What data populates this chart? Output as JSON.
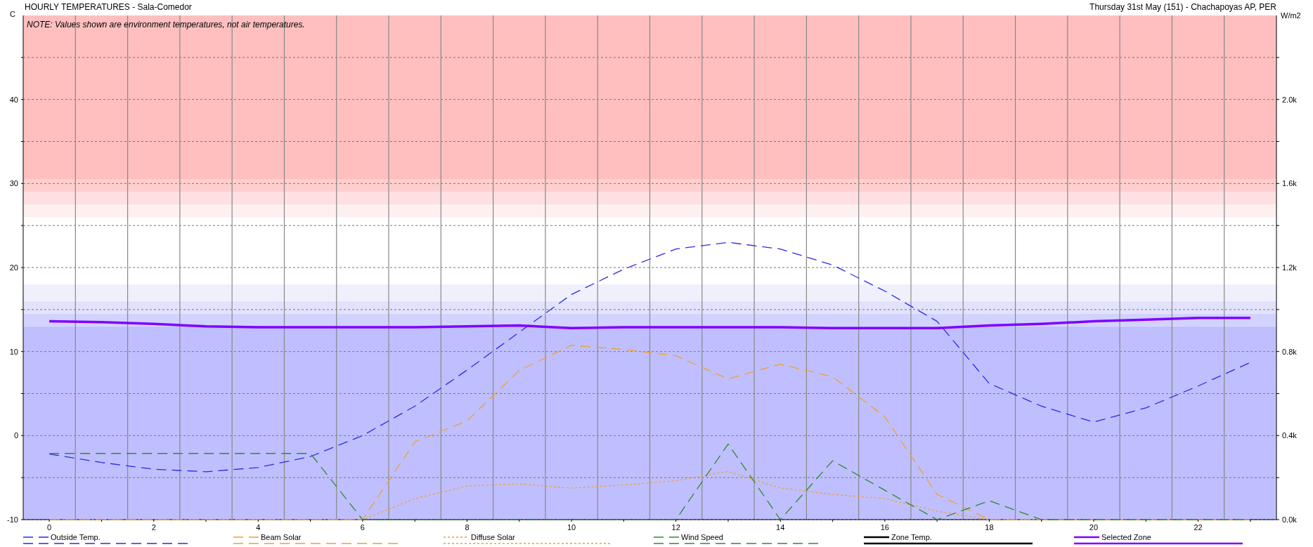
{
  "chart_data": {
    "type": "line",
    "title": "HOURLY TEMPERATURES - Sala-Comedor",
    "subtitle": "Thursday 31st May (151) - Chachapoyas AP, PER",
    "ylabel": "C",
    "y2label": "W/m2",
    "annotations": [
      "NOTE: Values shown are environment temperatures, not air temperatures."
    ],
    "x": [
      0,
      1,
      2,
      3,
      4,
      5,
      6,
      7,
      8,
      9,
      10,
      11,
      12,
      13,
      14,
      15,
      16,
      17,
      18,
      19,
      20,
      21,
      22,
      23
    ],
    "series": [
      {
        "name": "Outside Temp.",
        "color": "#2a2af0",
        "line_style": "dashed",
        "values": [
          -2.2,
          -3.2,
          -4.0,
          -4.3,
          -3.8,
          -2.5,
          0,
          3.5,
          7.8,
          12.3,
          16.8,
          19.8,
          22.2,
          23,
          22.2,
          20.3,
          17.2,
          13.6,
          6.2,
          3.5,
          1.6,
          3.3,
          5.9,
          8.7
        ]
      },
      {
        "name": "Beam Solar",
        "color": "#f0a030",
        "line_style": "dashed",
        "axis": "y2",
        "values": [
          0,
          0,
          0,
          0,
          0,
          0,
          0,
          370,
          470,
          710,
          830,
          810,
          780,
          670,
          740,
          680,
          490,
          120,
          0,
          0,
          0,
          0,
          0,
          0
        ]
      },
      {
        "name": "Diffuse Solar",
        "color": "#f0a030",
        "line_style": "dotted",
        "axis": "y2",
        "values": [
          0,
          0,
          0,
          0,
          0,
          0,
          0,
          100,
          160,
          170,
          150,
          165,
          185,
          230,
          150,
          120,
          100,
          40,
          0,
          0,
          0,
          0,
          0,
          0
        ]
      },
      {
        "name": "Wind Speed",
        "color": "#2e8b2e",
        "line_style": "dashed",
        "axis": "y2",
        "values": [
          315,
          315,
          315,
          315,
          315,
          315,
          0,
          0,
          0,
          0,
          0,
          0,
          0,
          360,
          0,
          280,
          140,
          0,
          90,
          0,
          0,
          0,
          0,
          0
        ]
      },
      {
        "name": "Zone Temp.",
        "color": "#000000",
        "line_style": "solid",
        "values": [
          null,
          null,
          null,
          null,
          null,
          null,
          null,
          null,
          null,
          null,
          null,
          null,
          null,
          null,
          null,
          null,
          null,
          null,
          null,
          null,
          null,
          null,
          null,
          null
        ]
      },
      {
        "name": "Selected Zone",
        "color": "#8000ff",
        "line_style": "solid",
        "values": [
          13.6,
          13.5,
          13.3,
          13.0,
          12.9,
          12.9,
          12.9,
          12.9,
          13.0,
          13.1,
          12.8,
          12.9,
          12.9,
          12.9,
          12.9,
          12.8,
          12.8,
          12.8,
          13.1,
          13.3,
          13.6,
          13.8,
          14.0,
          14.0
        ]
      }
    ],
    "xlim": [
      -0.5,
      23.5
    ],
    "xticks": [
      0,
      {
        "value": 1,
        "label": null
      },
      2,
      {
        "value": 3,
        "label": null
      },
      4,
      {
        "value": 5,
        "label": null
      },
      6,
      {
        "value": 7,
        "label": null
      },
      8,
      {
        "value": 9,
        "label": null
      },
      10,
      {
        "value": 11,
        "label": null
      },
      12,
      {
        "value": 13,
        "label": null
      },
      14,
      {
        "value": 15,
        "label": null
      },
      16,
      {
        "value": 17,
        "label": null
      },
      18,
      {
        "value": 19,
        "label": null
      },
      20,
      {
        "value": 21,
        "label": null
      },
      22,
      {
        "value": 23,
        "label": null
      }
    ],
    "ylim": [
      -10,
      50
    ],
    "yticks": [
      -10,
      {
        "value": -5,
        "label": null
      },
      0,
      {
        "value": 5,
        "label": null
      },
      10,
      {
        "value": 15,
        "label": null
      },
      20,
      {
        "value": 25,
        "label": null
      },
      30,
      {
        "value": 35,
        "label": null
      },
      40,
      {
        "value": 45,
        "label": null
      }
    ],
    "y2lim": [
      0,
      2400
    ],
    "y2ticks": [
      {
        "value": 0,
        "label": "0.0k"
      },
      {
        "value": 200,
        "label": null
      },
      {
        "value": 400,
        "label": "0.4k"
      },
      {
        "value": 600,
        "label": null
      },
      {
        "value": 800,
        "label": "0.8k"
      },
      {
        "value": 1000,
        "label": null
      },
      {
        "value": 1200,
        "label": "1.2k"
      },
      {
        "value": 1400,
        "label": null
      },
      {
        "value": 1600,
        "label": "1.6k"
      },
      {
        "value": 1800,
        "label": null
      },
      {
        "value": 2000,
        "label": "2.0k"
      },
      {
        "value": 2200,
        "label": null
      }
    ],
    "bands": [
      {
        "axis": "y",
        "from": -10,
        "to": 13,
        "color": "#bfbfff"
      },
      {
        "axis": "y",
        "from": 13,
        "to": 14.5,
        "color": "#d2d2ff"
      },
      {
        "axis": "y",
        "from": 14.5,
        "to": 16,
        "color": "#e2e2fd"
      },
      {
        "axis": "y",
        "from": 16,
        "to": 18,
        "color": "#f0f0fd"
      },
      {
        "axis": "y",
        "from": 26,
        "to": 27.5,
        "color": "#fff0f0"
      },
      {
        "axis": "y",
        "from": 27.5,
        "to": 29,
        "color": "#ffe0e0"
      },
      {
        "axis": "y",
        "from": 29,
        "to": 30.5,
        "color": "#ffcfcf"
      },
      {
        "axis": "y",
        "from": 30.5,
        "to": 50,
        "color": "#ffbfbf"
      }
    ],
    "ref_lines": [
      {
        "axis": "x",
        "value": 0.5,
        "color": "#888888"
      },
      {
        "axis": "x",
        "value": 1.5,
        "color": "#888888"
      },
      {
        "axis": "x",
        "value": 2.5,
        "color": "#888888"
      },
      {
        "axis": "x",
        "value": 3.5,
        "color": "#888888"
      },
      {
        "axis": "x",
        "value": 4.5,
        "color": "#888888"
      },
      {
        "axis": "x",
        "value": 5.5,
        "color": "#888888"
      },
      {
        "axis": "x",
        "value": 6.5,
        "color": "#888888"
      },
      {
        "axis": "x",
        "value": 7.5,
        "color": "#888888"
      },
      {
        "axis": "x",
        "value": 8.5,
        "color": "#888888"
      },
      {
        "axis": "x",
        "value": 9.5,
        "color": "#888888"
      },
      {
        "axis": "x",
        "value": 10.5,
        "color": "#888888"
      },
      {
        "axis": "x",
        "value": 11.5,
        "color": "#888888"
      },
      {
        "axis": "x",
        "value": 12.5,
        "color": "#888888"
      },
      {
        "axis": "x",
        "value": 13.5,
        "color": "#888888"
      },
      {
        "axis": "x",
        "value": 14.5,
        "color": "#888888"
      },
      {
        "axis": "x",
        "value": 15.5,
        "color": "#888888"
      },
      {
        "axis": "x",
        "value": 16.5,
        "color": "#888888"
      },
      {
        "axis": "x",
        "value": 17.5,
        "color": "#888888"
      },
      {
        "axis": "x",
        "value": 18.5,
        "color": "#888888"
      },
      {
        "axis": "x",
        "value": 19.5,
        "color": "#888888"
      },
      {
        "axis": "x",
        "value": 20.5,
        "color": "#888888"
      },
      {
        "axis": "x",
        "value": 21.5,
        "color": "#888888"
      },
      {
        "axis": "x",
        "value": 22.5,
        "color": "#888888"
      }
    ],
    "grid": "y",
    "legend": "bottom",
    "marker": "none"
  }
}
